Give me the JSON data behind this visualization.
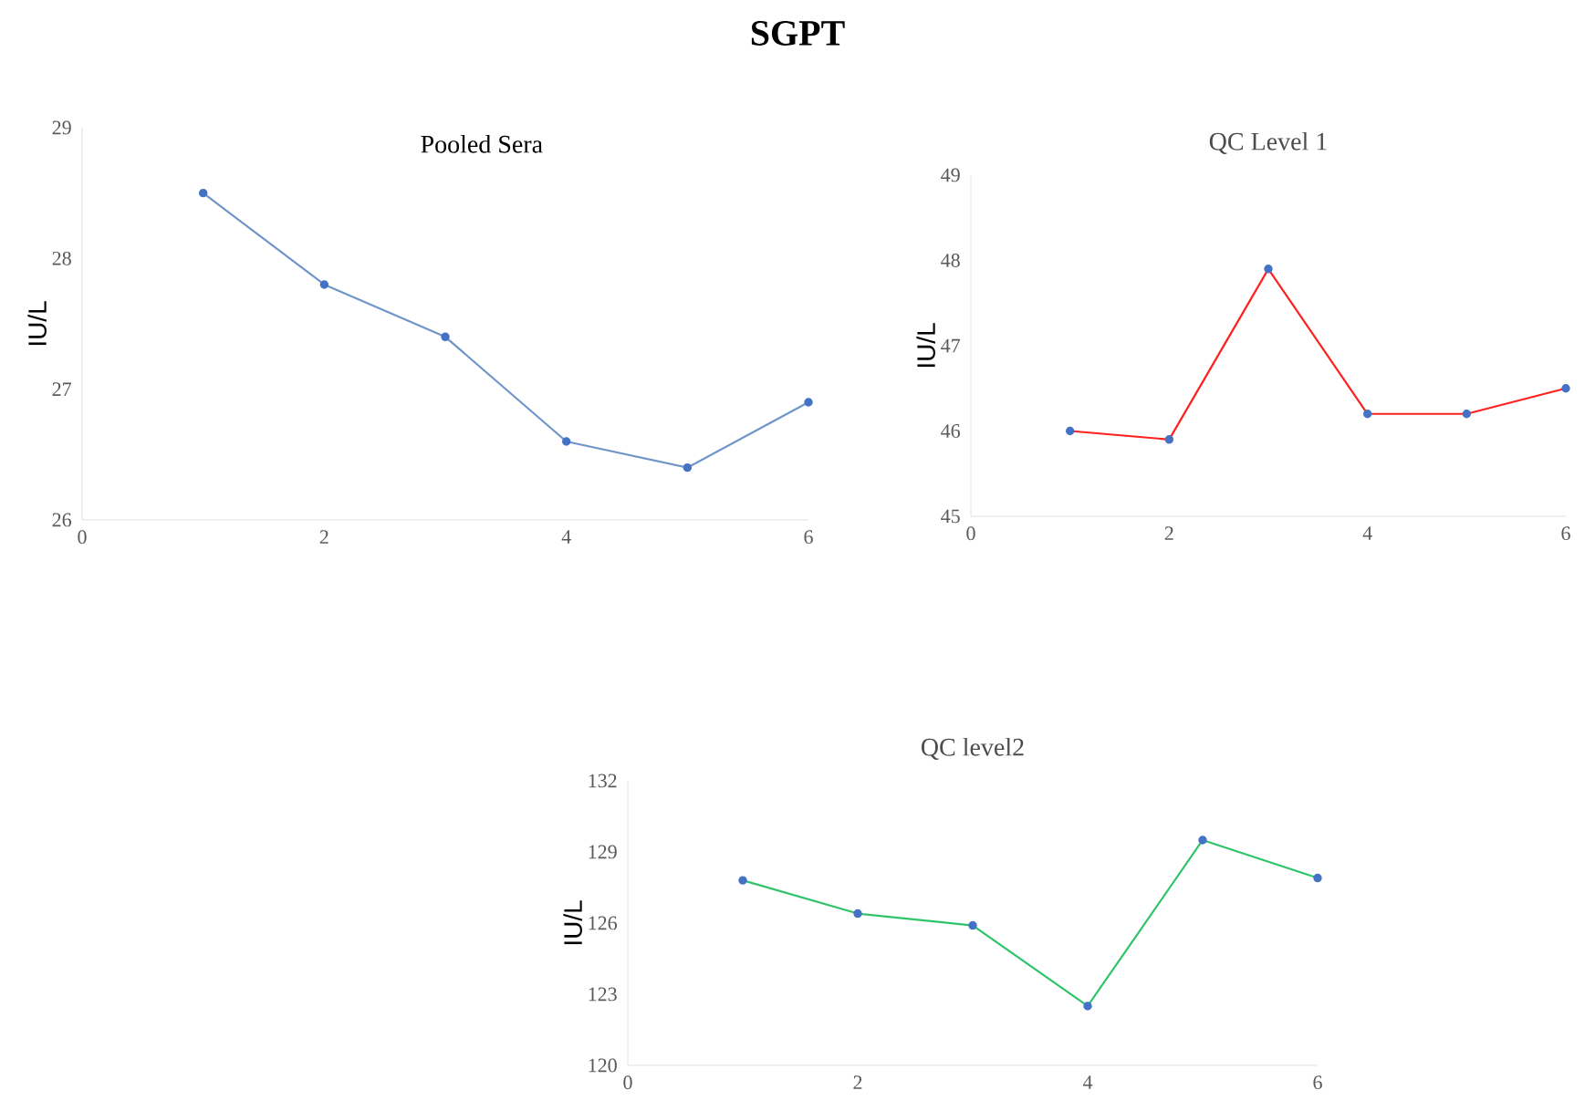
{
  "chart_data": [
    {
      "type": "line",
      "title": "Pooled Sera",
      "annotations": [
        "SGPT"
      ],
      "ylabel": "IU/L",
      "x": [
        1,
        2,
        3,
        4,
        5,
        6
      ],
      "xlim": [
        0,
        6
      ],
      "xticks": [
        0,
        2,
        4,
        6
      ],
      "ylim": [
        26,
        29
      ],
      "yticks": [
        26,
        27,
        28,
        29
      ],
      "marker": "circle",
      "line_style": "solid",
      "grid": false,
      "series": [
        {
          "color": "#6f95c9",
          "values": [
            28.5,
            27.8,
            27.4,
            26.6,
            26.4,
            26.9
          ]
        }
      ]
    },
    {
      "type": "line",
      "title": "QC Level 1",
      "ylabel": "IU/L",
      "x": [
        1,
        2,
        3,
        4,
        5,
        6
      ],
      "xlim": [
        0,
        6
      ],
      "xticks": [
        0,
        2,
        4,
        6
      ],
      "ylim": [
        45,
        49
      ],
      "yticks": [
        45,
        46,
        47,
        48,
        49
      ],
      "marker": "circle",
      "line_style": "solid",
      "grid": false,
      "series": [
        {
          "color": "#ff2020",
          "values": [
            46.0,
            45.9,
            47.9,
            46.2,
            46.2,
            46.5
          ]
        }
      ]
    },
    {
      "type": "line",
      "title": "QC level2",
      "ylabel": "IU/L",
      "x": [
        1,
        2,
        3,
        4,
        5,
        6
      ],
      "xlim": [
        0,
        6
      ],
      "xticks": [
        0,
        2,
        4,
        6
      ],
      "ylim": [
        120,
        132
      ],
      "yticks": [
        120,
        123,
        126,
        129,
        132
      ],
      "marker": "circle",
      "line_style": "solid",
      "grid": false,
      "series": [
        {
          "color": "#2fc46a",
          "values": [
            127.8,
            126.4,
            125.9,
            122.5,
            129.5,
            127.9
          ]
        }
      ]
    }
  ]
}
